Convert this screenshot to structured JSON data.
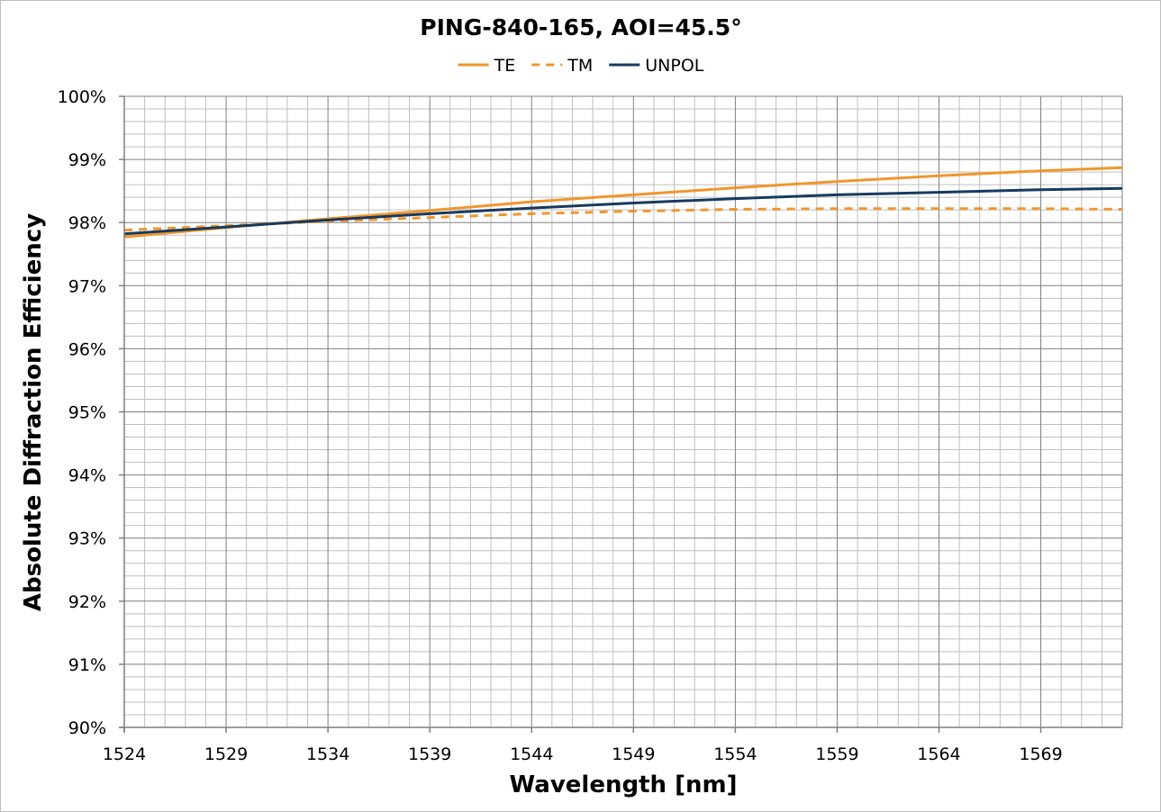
{
  "chart_data": {
    "type": "line",
    "title": "PING-840-165, AOI=45.5°",
    "xlabel": "Wavelength [nm]",
    "ylabel": "Absolute Diffraction Efficiency",
    "xlim": [
      1524,
      1573
    ],
    "ylim": [
      90,
      100
    ],
    "x_ticks": [
      1524,
      1529,
      1534,
      1539,
      1544,
      1549,
      1554,
      1559,
      1564,
      1569
    ],
    "x_tick_labels": [
      "1524",
      "1529",
      "1534",
      "1539",
      "1544",
      "1549",
      "1554",
      "1559",
      "1564",
      "1569"
    ],
    "y_ticks": [
      90,
      91,
      92,
      93,
      94,
      95,
      96,
      97,
      98,
      99,
      100
    ],
    "y_tick_labels": [
      "90%",
      "91%",
      "92%",
      "93%",
      "94%",
      "95%",
      "96%",
      "97%",
      "98%",
      "99%",
      "100%"
    ],
    "grid": true,
    "legend_position": "top-center",
    "x": [
      1524,
      1529,
      1534,
      1539,
      1544,
      1549,
      1554,
      1559,
      1564,
      1569,
      1573
    ],
    "series": [
      {
        "name": "TE",
        "color": "#f0962d",
        "dash": "solid",
        "values": [
          97.77,
          97.92,
          98.06,
          98.19,
          98.33,
          98.44,
          98.55,
          98.65,
          98.74,
          98.82,
          98.87
        ]
      },
      {
        "name": "TM",
        "color": "#f0962d",
        "dash": "dashed",
        "values": [
          97.88,
          97.95,
          98.02,
          98.08,
          98.14,
          98.18,
          98.21,
          98.22,
          98.22,
          98.22,
          98.21
        ]
      },
      {
        "name": "UNPOL",
        "color": "#173a5e",
        "dash": "solid",
        "values": [
          97.82,
          97.93,
          98.04,
          98.14,
          98.23,
          98.31,
          98.38,
          98.44,
          98.48,
          98.52,
          98.54
        ]
      }
    ]
  }
}
